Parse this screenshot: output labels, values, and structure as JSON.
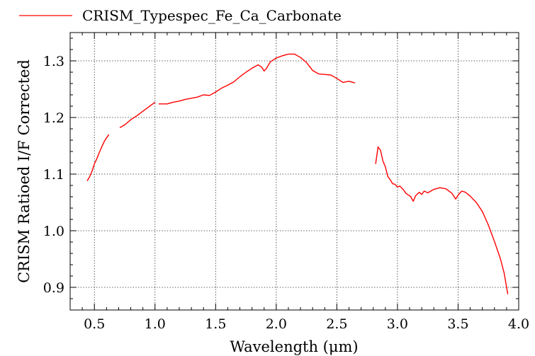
{
  "chart_data": {
    "type": "line",
    "legend": {
      "entries": [
        "CRISM_Typespec_Fe_Ca_Carbonate"
      ],
      "placement": "top-left, above plot"
    },
    "xlabel": "Wavelength (μm)",
    "ylabel": "CRISM Ratioed I/F Corrected",
    "xlim": [
      0.3,
      4.0
    ],
    "ylim": [
      0.86,
      1.35
    ],
    "x_ticks": [
      0.5,
      1.0,
      1.5,
      2.0,
      2.5,
      3.0,
      3.5,
      4.0
    ],
    "x_tick_labels": [
      "0.5",
      "1.0",
      "1.5",
      "2.0",
      "2.5",
      "3.0",
      "3.5",
      "4.0"
    ],
    "y_ticks": [
      0.9,
      1.0,
      1.1,
      1.2,
      1.3
    ],
    "y_tick_labels": [
      "0.9",
      "1.0",
      "1.1",
      "1.2",
      "1.3"
    ],
    "grid": "dotted",
    "color": "#ff0000",
    "series": [
      {
        "name": "CRISM_Typespec_Fe_Ca_Carbonate",
        "segments": [
          [
            [
              0.44,
              1.088
            ],
            [
              0.46,
              1.095
            ],
            [
              0.48,
              1.105
            ],
            [
              0.5,
              1.118
            ],
            [
              0.52,
              1.127
            ],
            [
              0.54,
              1.138
            ],
            [
              0.56,
              1.148
            ],
            [
              0.58,
              1.157
            ],
            [
              0.6,
              1.164
            ],
            [
              0.62,
              1.17
            ]
          ],
          [
            [
              0.71,
              1.182
            ],
            [
              0.75,
              1.187
            ],
            [
              0.8,
              1.196
            ],
            [
              0.85,
              1.203
            ],
            [
              0.9,
              1.211
            ],
            [
              0.95,
              1.219
            ],
            [
              1.0,
              1.227
            ]
          ],
          [
            [
              1.03,
              1.224
            ],
            [
              1.1,
              1.224
            ],
            [
              1.15,
              1.227
            ],
            [
              1.2,
              1.229
            ],
            [
              1.25,
              1.232
            ],
            [
              1.3,
              1.234
            ],
            [
              1.35,
              1.236
            ],
            [
              1.4,
              1.24
            ],
            [
              1.45,
              1.239
            ],
            [
              1.5,
              1.245
            ],
            [
              1.55,
              1.252
            ],
            [
              1.6,
              1.257
            ],
            [
              1.65,
              1.263
            ],
            [
              1.7,
              1.272
            ],
            [
              1.75,
              1.28
            ],
            [
              1.8,
              1.287
            ],
            [
              1.85,
              1.293
            ],
            [
              1.88,
              1.289
            ],
            [
              1.9,
              1.282
            ],
            [
              1.92,
              1.287
            ],
            [
              1.95,
              1.298
            ],
            [
              2.0,
              1.305
            ],
            [
              2.05,
              1.309
            ],
            [
              2.1,
              1.312
            ],
            [
              2.15,
              1.312
            ],
            [
              2.2,
              1.306
            ],
            [
              2.25,
              1.297
            ],
            [
              2.3,
              1.283
            ],
            [
              2.35,
              1.277
            ],
            [
              2.4,
              1.276
            ],
            [
              2.45,
              1.275
            ],
            [
              2.5,
              1.269
            ],
            [
              2.55,
              1.262
            ],
            [
              2.6,
              1.264
            ],
            [
              2.65,
              1.261
            ]
          ],
          [
            [
              2.82,
              1.118
            ],
            [
              2.84,
              1.148
            ],
            [
              2.86,
              1.142
            ],
            [
              2.88,
              1.123
            ],
            [
              2.9,
              1.113
            ],
            [
              2.92,
              1.096
            ],
            [
              2.94,
              1.09
            ],
            [
              2.96,
              1.083
            ],
            [
              2.98,
              1.082
            ],
            [
              3.0,
              1.077
            ],
            [
              3.02,
              1.079
            ],
            [
              3.05,
              1.072
            ],
            [
              3.07,
              1.066
            ],
            [
              3.09,
              1.063
            ],
            [
              3.11,
              1.06
            ],
            [
              3.13,
              1.052
            ],
            [
              3.15,
              1.062
            ],
            [
              3.18,
              1.068
            ],
            [
              3.2,
              1.064
            ],
            [
              3.22,
              1.07
            ],
            [
              3.25,
              1.067
            ],
            [
              3.3,
              1.073
            ],
            [
              3.35,
              1.076
            ],
            [
              3.4,
              1.074
            ],
            [
              3.45,
              1.066
            ],
            [
              3.48,
              1.056
            ],
            [
              3.5,
              1.063
            ],
            [
              3.53,
              1.07
            ],
            [
              3.56,
              1.068
            ],
            [
              3.6,
              1.061
            ],
            [
              3.65,
              1.05
            ],
            [
              3.7,
              1.034
            ],
            [
              3.75,
              1.01
            ],
            [
              3.8,
              0.981
            ],
            [
              3.85,
              0.95
            ],
            [
              3.88,
              0.925
            ],
            [
              3.91,
              0.888
            ]
          ]
        ]
      }
    ]
  }
}
